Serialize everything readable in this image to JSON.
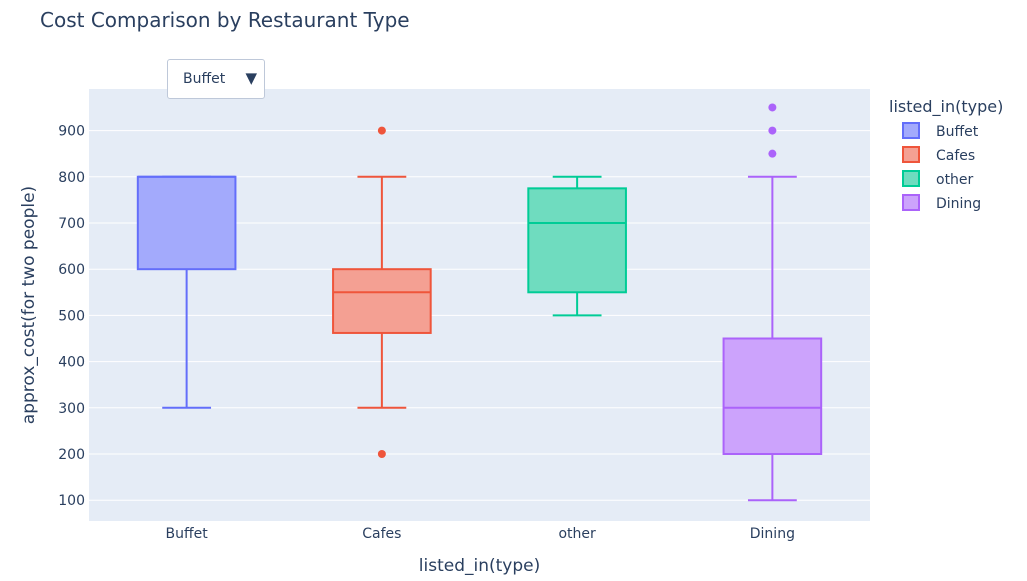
{
  "chart_data": {
    "type": "box",
    "title": "Cost Comparison by Restaurant Type",
    "xlabel": "listed_in(type)",
    "ylabel": "approx_cost(for two people)",
    "ylim": [
      55,
      990
    ],
    "yticks": [
      100,
      200,
      300,
      400,
      500,
      600,
      700,
      800,
      900
    ],
    "categories": [
      "Buffet",
      "Cafes",
      "other",
      "Dining"
    ],
    "legend": {
      "title": "listed_in(type)",
      "placement": "right"
    },
    "grid": true,
    "series": [
      {
        "name": "Buffet",
        "color": "#636efa",
        "fill": "#a3aafc",
        "min": 300,
        "q1": 600,
        "median": 800,
        "q3": 800,
        "max": 800,
        "outliers": []
      },
      {
        "name": "Cafes",
        "color": "#ef553b",
        "fill": "#f4a093",
        "min": 300,
        "q1": 462,
        "median": 550,
        "q3": 600,
        "max": 800,
        "outliers": [
          200,
          900
        ]
      },
      {
        "name": "other",
        "color": "#00cc96",
        "fill": "#6fdcbf",
        "min": 500,
        "q1": 550,
        "median": 700,
        "q3": 775,
        "max": 800,
        "outliers": []
      },
      {
        "name": "Dining",
        "color": "#ab63fa",
        "fill": "#cca3fc",
        "min": 100,
        "q1": 200,
        "median": 300,
        "q3": 450,
        "max": 800,
        "outliers": [
          850,
          900,
          950
        ]
      }
    ]
  },
  "dropdown": {
    "selected": "Buffet",
    "arrow": "▼"
  }
}
